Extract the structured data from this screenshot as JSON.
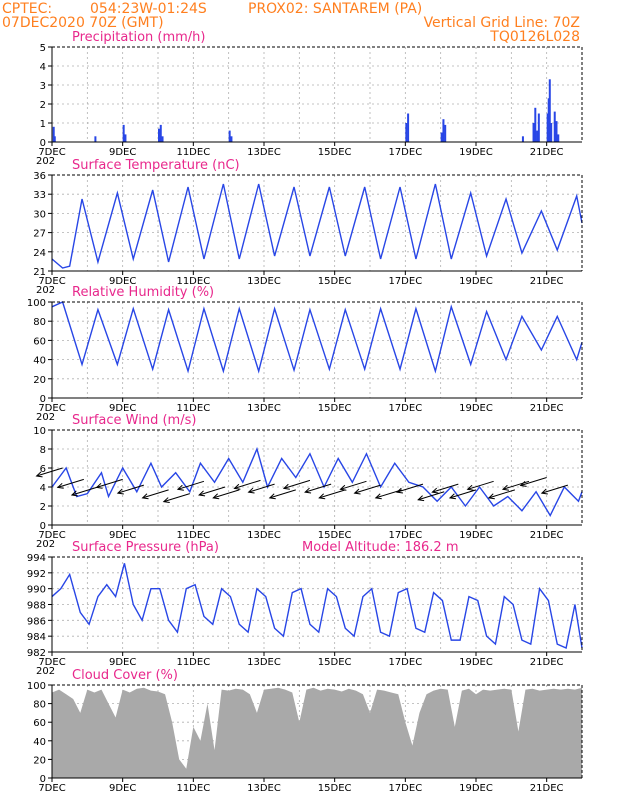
{
  "header": {
    "source": "CPTEC:",
    "coords": "054:23W-01:24S",
    "location": "PROX02: SANTAREM (PA)",
    "run": "07DEC2020 70Z (GMT)",
    "vgrid": "Vertical Grid Line: 70Z",
    "model": "TQ0126L028"
  },
  "colors": {
    "header": "#ff7f1f",
    "panel_title": "#e8288c",
    "series": "#2846e6",
    "cloud": "#a9a9a9",
    "grid": "#b0b0b0"
  },
  "x_tick_labels": [
    "7DEC",
    "9DEC",
    "11DEC",
    "13DEC",
    "15DEC",
    "17DEC",
    "19DEC",
    "21DEC"
  ],
  "stub_label": "202",
  "chart_data": [
    {
      "type": "bar",
      "title": "Precipitation (mm/h)",
      "ylim": [
        0,
        5
      ],
      "yticks": [
        "0",
        "1",
        "2",
        "3",
        "4",
        "5"
      ],
      "x_range_days": [
        7,
        22
      ],
      "series": [
        {
          "x": [
            7.02,
            7.05,
            8.2,
            9.0,
            9.05,
            10.0,
            10.05,
            10.1,
            12.0,
            12.05,
            17.0,
            17.05,
            18.0,
            18.05,
            18.1,
            20.3,
            20.6,
            20.65,
            20.7,
            20.75,
            21.0,
            21.03,
            21.06,
            21.1,
            21.2,
            21.25,
            21.3
          ],
          "values": [
            0.8,
            0.3,
            0.3,
            0.9,
            0.4,
            0.7,
            0.9,
            0.3,
            0.6,
            0.3,
            1.0,
            1.5,
            0.5,
            1.2,
            0.9,
            0.3,
            1.0,
            1.8,
            0.6,
            1.5,
            1.5,
            2.3,
            3.3,
            1.0,
            1.6,
            1.1,
            0.4
          ]
        }
      ]
    },
    {
      "type": "line",
      "title": "Surface Temperature (nC)",
      "ylim": [
        20,
        36
      ],
      "yticks": [
        "21",
        "24",
        "27",
        "30",
        "33",
        "36"
      ],
      "x_range_days": [
        7,
        22
      ],
      "series": [
        {
          "x": [
            7.0,
            7.3,
            7.5,
            7.85,
            8.3,
            8.85,
            9.3,
            9.85,
            10.3,
            10.85,
            11.3,
            11.85,
            12.3,
            12.85,
            13.3,
            13.85,
            14.3,
            14.85,
            15.3,
            15.85,
            16.3,
            16.85,
            17.3,
            17.85,
            18.3,
            18.85,
            19.3,
            19.85,
            20.3,
            20.85,
            21.3,
            21.85,
            22.0
          ],
          "values": [
            22,
            20.5,
            20.8,
            32,
            21.5,
            33,
            22,
            33.5,
            21.5,
            34,
            22,
            34.5,
            22,
            34.5,
            22.5,
            34,
            22.5,
            34,
            22.5,
            34,
            22,
            34,
            22,
            34.5,
            22,
            33,
            22.5,
            32,
            23,
            30,
            23.5,
            32.5,
            28
          ]
        }
      ]
    },
    {
      "type": "line",
      "title": "Relative Humidity (%)",
      "ylim": [
        0,
        100
      ],
      "yticks": [
        "0",
        "20",
        "40",
        "60",
        "80",
        "100"
      ],
      "x_range_days": [
        7,
        22
      ],
      "series": [
        {
          "x": [
            7.0,
            7.3,
            7.85,
            8.3,
            8.85,
            9.3,
            9.85,
            10.3,
            10.85,
            11.3,
            11.85,
            12.3,
            12.85,
            13.3,
            13.85,
            14.3,
            14.85,
            15.3,
            15.85,
            16.3,
            16.85,
            17.3,
            17.85,
            18.3,
            18.85,
            19.3,
            19.85,
            20.3,
            20.85,
            21.3,
            21.85,
            22.0
          ],
          "values": [
            95,
            100,
            35,
            92,
            35,
            93,
            30,
            92,
            28,
            93,
            28,
            93,
            28,
            93,
            29,
            92,
            30,
            92,
            30,
            93,
            30,
            93,
            28,
            95,
            35,
            90,
            40,
            85,
            50,
            85,
            40,
            58
          ]
        }
      ]
    },
    {
      "type": "line",
      "title": "Surface Wind (m/s)",
      "ylim": [
        0,
        10
      ],
      "yticks": [
        "0",
        "2",
        "4",
        "6",
        "8",
        "10"
      ],
      "x_range_days": [
        7,
        22
      ],
      "series": [
        {
          "x": [
            7.0,
            7.4,
            7.7,
            8.0,
            8.4,
            8.6,
            9.0,
            9.4,
            9.8,
            10.1,
            10.5,
            10.9,
            11.2,
            11.6,
            12.0,
            12.4,
            12.8,
            13.1,
            13.5,
            13.9,
            14.3,
            14.7,
            15.1,
            15.5,
            15.9,
            16.3,
            16.7,
            17.1,
            17.5,
            17.9,
            18.3,
            18.7,
            19.1,
            19.5,
            19.9,
            20.3,
            20.7,
            21.1,
            21.5,
            21.9,
            22.0
          ],
          "values": [
            4.0,
            6.0,
            3.0,
            3.3,
            5.5,
            3.0,
            6.0,
            3.5,
            6.5,
            4.0,
            5.5,
            3.5,
            6.5,
            4.5,
            7.0,
            4.5,
            8.0,
            4.0,
            7.0,
            5.0,
            7.5,
            4.0,
            7.0,
            4.5,
            7.5,
            4.0,
            6.5,
            4.5,
            4.0,
            2.5,
            4.0,
            2.0,
            4.0,
            2.0,
            3.0,
            1.5,
            3.5,
            1.0,
            4.0,
            2.5,
            3.5
          ]
        }
      ],
      "vectors": [
        {
          "x": [
            7.3,
            7.9,
            8.3,
            9.0,
            9.6,
            10.3,
            10.9,
            11.3,
            11.9,
            12.3,
            12.9,
            13.3,
            13.9,
            14.3,
            14.9,
            15.3,
            15.9,
            16.3,
            16.9,
            17.5,
            18.1,
            18.5,
            19.0,
            19.5,
            20.1,
            20.5,
            21.0,
            21.6
          ],
          "values": [
            6.0,
            4.8,
            4.0,
            4.8,
            4.2,
            3.7,
            3.3,
            4.6,
            4.0,
            3.7,
            4.7,
            4.3,
            3.7,
            4.7,
            4.3,
            3.7,
            4.6,
            4.2,
            3.7,
            4.3,
            3.5,
            4.3,
            3.7,
            4.6,
            3.7,
            4.6,
            5.0,
            4.2
          ]
        }
      ]
    },
    {
      "type": "line",
      "title": "Surface Pressure (hPa)",
      "subtitle": "Model Altitude: 186.2 m",
      "ylim": [
        982,
        994
      ],
      "yticks": [
        "982",
        "984",
        "986",
        "988",
        "990",
        "992",
        "994"
      ],
      "x_range_days": [
        7,
        22
      ],
      "series": [
        {
          "x": [
            7.0,
            7.25,
            7.5,
            7.8,
            8.05,
            8.3,
            8.55,
            8.8,
            9.05,
            9.3,
            9.55,
            9.8,
            10.05,
            10.3,
            10.55,
            10.8,
            11.05,
            11.3,
            11.55,
            11.8,
            12.05,
            12.3,
            12.55,
            12.8,
            13.05,
            13.3,
            13.55,
            13.8,
            14.05,
            14.3,
            14.55,
            14.8,
            15.05,
            15.3,
            15.55,
            15.8,
            16.05,
            16.3,
            16.55,
            16.8,
            17.05,
            17.3,
            17.55,
            17.8,
            18.05,
            18.3,
            18.55,
            18.8,
            19.05,
            19.3,
            19.55,
            19.8,
            20.05,
            20.3,
            20.55,
            20.8,
            21.05,
            21.3,
            21.55,
            21.8,
            22.0
          ],
          "values": [
            989,
            990,
            991.8,
            987,
            985.5,
            989,
            990.5,
            989,
            993.2,
            988,
            986,
            990,
            990,
            986,
            984.5,
            990,
            990.5,
            986.5,
            985.5,
            990,
            989,
            985.5,
            984.5,
            990,
            989,
            985,
            984,
            989.5,
            990,
            985.5,
            984.5,
            990,
            989,
            985,
            984,
            989,
            990,
            984.5,
            984,
            989.5,
            990,
            985,
            984.5,
            989.5,
            988.5,
            983.5,
            983.5,
            989,
            988.5,
            984,
            983,
            989,
            988,
            983.5,
            983,
            990,
            988.5,
            983,
            982.5,
            988,
            982.5
          ]
        }
      ]
    },
    {
      "type": "area",
      "title": "Cloud Cover (%)",
      "ylim": [
        0,
        100
      ],
      "yticks": [
        "0",
        "20",
        "40",
        "60",
        "80",
        "100"
      ],
      "x_range_days": [
        7,
        22
      ],
      "series": [
        {
          "x": [
            7.0,
            7.2,
            7.4,
            7.6,
            7.8,
            8.0,
            8.2,
            8.4,
            8.6,
            8.8,
            9.0,
            9.2,
            9.4,
            9.6,
            9.8,
            10.0,
            10.2,
            10.4,
            10.6,
            10.8,
            11.0,
            11.2,
            11.4,
            11.6,
            11.8,
            12.0,
            12.2,
            12.4,
            12.6,
            12.8,
            13.0,
            13.2,
            13.4,
            13.6,
            13.8,
            14.0,
            14.2,
            14.4,
            14.6,
            14.8,
            15.0,
            15.2,
            15.4,
            15.6,
            15.8,
            16.0,
            16.2,
            16.4,
            16.6,
            16.8,
            17.0,
            17.2,
            17.4,
            17.6,
            17.8,
            18.0,
            18.2,
            18.4,
            18.6,
            18.8,
            19.0,
            19.2,
            19.4,
            19.6,
            19.8,
            20.0,
            20.2,
            20.4,
            20.6,
            20.8,
            21.0,
            21.2,
            21.4,
            21.6,
            21.8,
            22.0
          ],
          "values": [
            92,
            95,
            90,
            85,
            70,
            95,
            92,
            95,
            80,
            65,
            95,
            92,
            96,
            97,
            94,
            93,
            90,
            60,
            20,
            10,
            55,
            40,
            80,
            30,
            95,
            94,
            96,
            95,
            90,
            70,
            95,
            96,
            97,
            95,
            92,
            60,
            95,
            97,
            94,
            96,
            95,
            93,
            96,
            94,
            90,
            70,
            95,
            94,
            92,
            90,
            60,
            35,
            70,
            90,
            94,
            96,
            95,
            55,
            94,
            96,
            90,
            95,
            94,
            95,
            96,
            95,
            50,
            95,
            96,
            94,
            95,
            96,
            95,
            96,
            95,
            97
          ]
        }
      ]
    }
  ]
}
